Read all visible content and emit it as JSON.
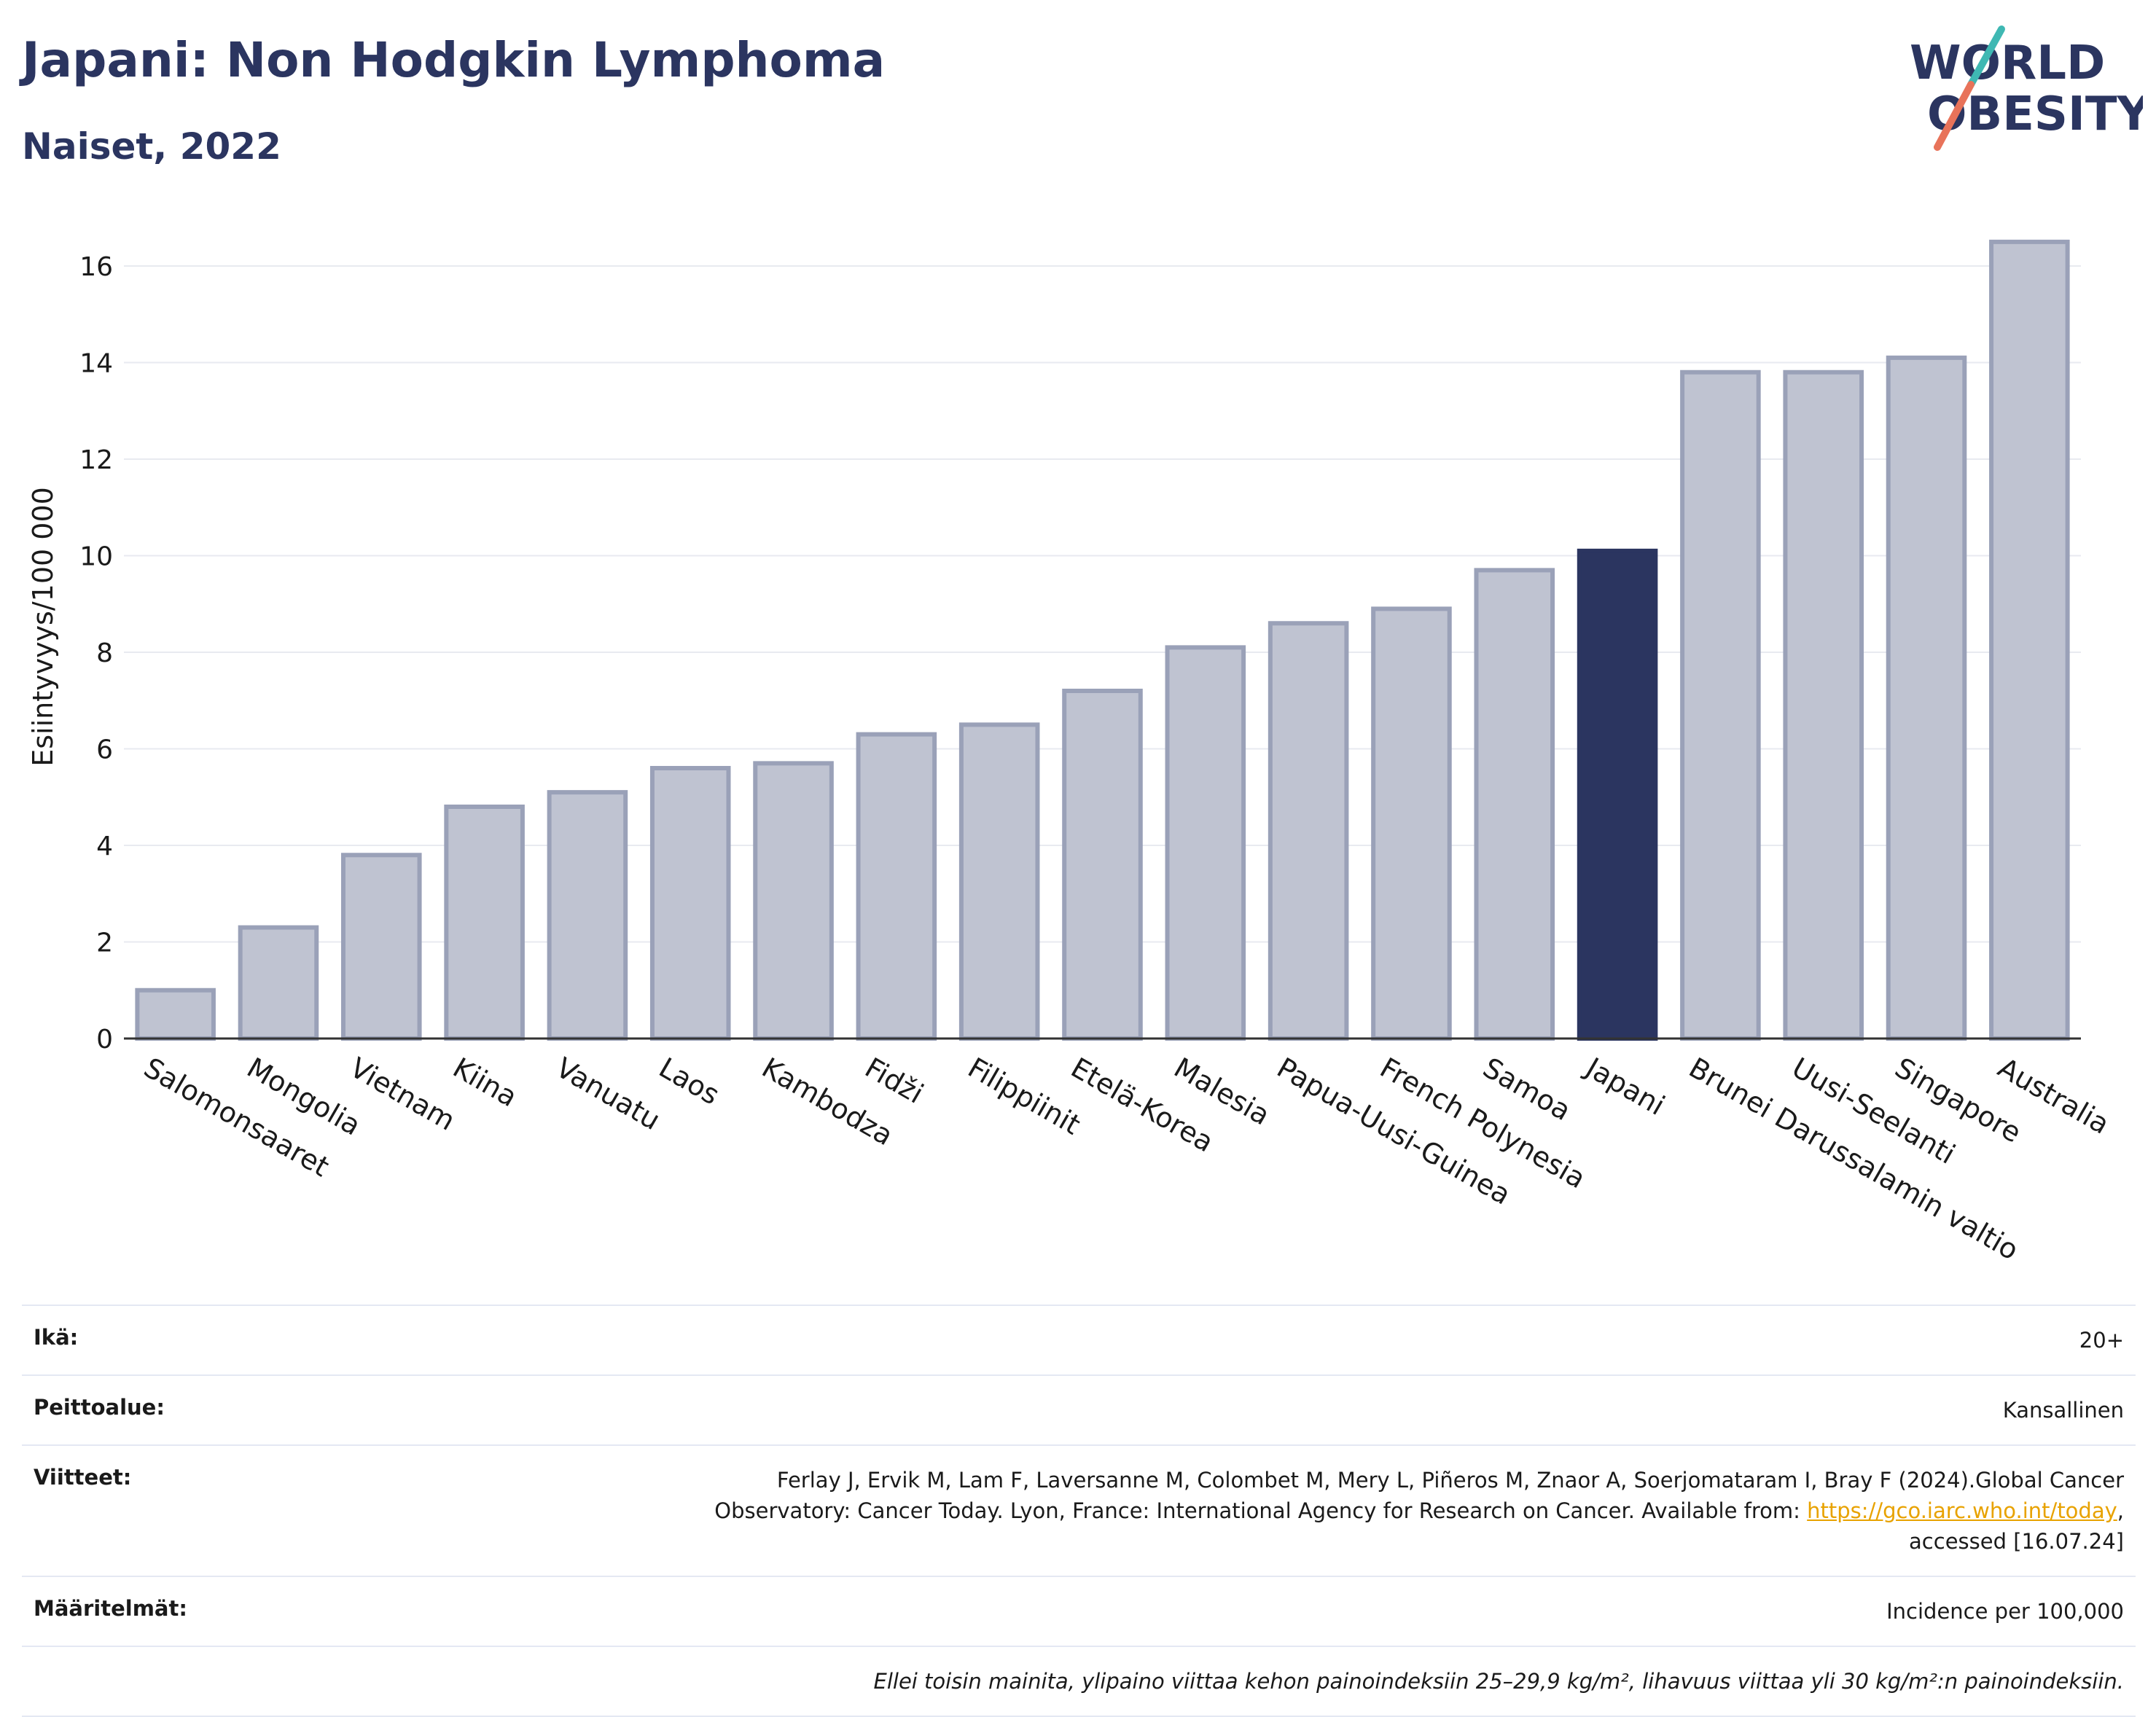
{
  "header": {
    "title": "Japani: Non Hodgkin Lymphoma",
    "subtitle": "Naiset, 2022"
  },
  "logo": {
    "line1": "WORLD",
    "line2": "OBESITY",
    "accent_teal": "#3fb8b3",
    "accent_coral": "#e8735a"
  },
  "colors": {
    "bar": "#bfc3d1",
    "bar_border": "#9aa1b8",
    "highlight": "#2b3560",
    "grid": "#e8eaf0",
    "axis": "#333333"
  },
  "chart_data": {
    "type": "bar",
    "ylabel": "Esiintyvyys/100 000",
    "ylim": [
      0,
      17
    ],
    "yticks": [
      0,
      2,
      4,
      6,
      8,
      10,
      12,
      14,
      16
    ],
    "grid": true,
    "highlight": "Japani",
    "categories": [
      "Salomonsaaret",
      "Mongolia",
      "Vietnam",
      "Kiina",
      "Vanuatu",
      "Laos",
      "Kambodza",
      "Fidži",
      "Filippiinit",
      "Etelä-Korea",
      "Malesia",
      "Papua-Uusi-Guinea",
      "French Polynesia",
      "Samoa",
      "Japani",
      "Brunei Darussalamin valtio",
      "Uusi-Seelanti",
      "Singapore",
      "Australia"
    ],
    "values": [
      1.0,
      2.3,
      3.8,
      4.8,
      5.1,
      5.6,
      5.7,
      6.3,
      6.5,
      7.2,
      8.1,
      8.6,
      8.9,
      9.7,
      10.1,
      13.8,
      13.8,
      14.1,
      16.5
    ]
  },
  "meta": {
    "age_label": "Ikä:",
    "age_value": "20+",
    "coverage_label": "Peittoalue:",
    "coverage_value": "Kansallinen",
    "refs_label": "Viitteet:",
    "refs_line1": "Ferlay J, Ervik M, Lam F, Laversanne M, Colombet M, Mery L, Piñeros M, Znaor A, Soerjomataram I, Bray F (2024).Global Cancer",
    "refs_line2_pre": "Observatory: Cancer Today. Lyon, France: International Agency for Research on Cancer. Available from: ",
    "refs_link": "https://gco.iarc.who.int/today",
    "refs_line2_post": ",",
    "refs_line3": "accessed [16.07.24]",
    "defs_label": "Määritelmät:",
    "defs_value": "Incidence per 100,000",
    "note": "Ellei toisin mainita, ylipaino viittaa kehon painoindeksiin 25–29,9 kg/m², lihavuus viittaa yli 30 kg/m²:n painoindeksiin."
  }
}
